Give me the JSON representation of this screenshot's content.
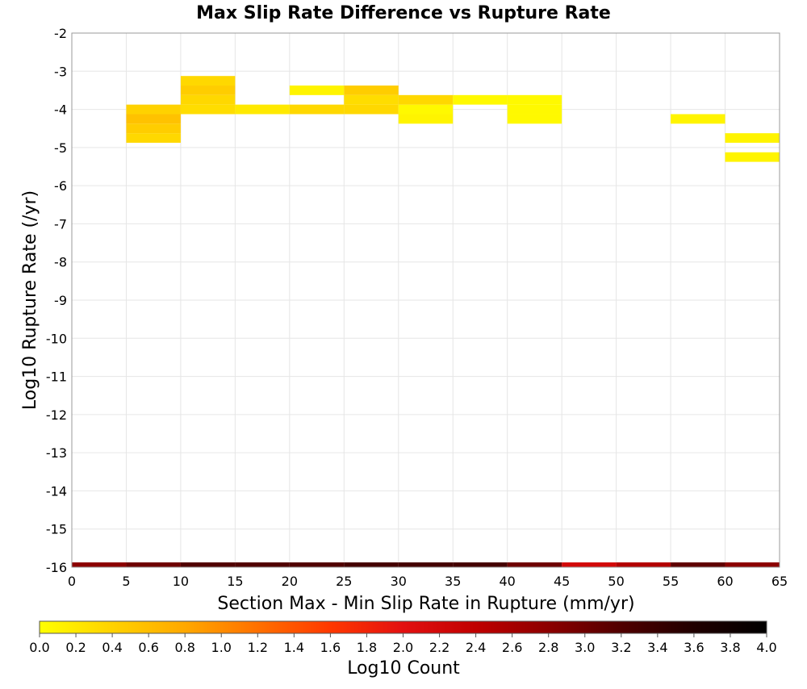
{
  "chart_data": {
    "type": "heatmap",
    "title": "Max Slip Rate Difference vs Rupture Rate",
    "xlabel": "Section Max - Min Slip Rate in Rupture (mm/yr)",
    "ylabel": "Log10 Rupture Rate (/yr)",
    "xlim": [
      0,
      65
    ],
    "ylim": [
      -16,
      -2
    ],
    "xticks": [
      "0",
      "5",
      "10",
      "15",
      "20",
      "25",
      "30",
      "35",
      "40",
      "45",
      "50",
      "55",
      "60",
      "65"
    ],
    "yticks": [
      "-2",
      "-3",
      "-4",
      "-5",
      "-6",
      "-7",
      "-8",
      "-9",
      "-10",
      "-11",
      "-12",
      "-13",
      "-14",
      "-15",
      "-16"
    ],
    "x_bin_width": 5,
    "y_bin_height": 0.25,
    "grid": true,
    "colorbar": {
      "label": "Log10 Count",
      "min": 0.0,
      "max": 4.0,
      "ticks": [
        "0.0",
        "0.2",
        "0.4",
        "0.6",
        "0.8",
        "1.0",
        "1.2",
        "1.4",
        "1.6",
        "1.8",
        "2.0",
        "2.2",
        "2.4",
        "2.6",
        "2.8",
        "3.0",
        "3.2",
        "3.4",
        "3.6",
        "3.8",
        "4.0"
      ],
      "colors": [
        "#ffff00",
        "#ffd200",
        "#ffa800",
        "#ff7000",
        "#ff3800",
        "#e31010",
        "#c00000",
        "#8c0000",
        "#500000",
        "#200000",
        "#000000"
      ]
    },
    "cells": [
      {
        "x": 5,
        "y": -4.75,
        "value": 0.35
      },
      {
        "x": 5,
        "y": -4.5,
        "value": 0.45
      },
      {
        "x": 5,
        "y": -4.25,
        "value": 0.55
      },
      {
        "x": 5,
        "y": -4.0,
        "value": 0.4
      },
      {
        "x": 10,
        "y": -4.0,
        "value": 0.3
      },
      {
        "x": 10,
        "y": -3.75,
        "value": 0.35
      },
      {
        "x": 10,
        "y": -3.5,
        "value": 0.45
      },
      {
        "x": 10,
        "y": -3.25,
        "value": 0.35
      },
      {
        "x": 15,
        "y": -4.0,
        "value": 0.2
      },
      {
        "x": 20,
        "y": -4.0,
        "value": 0.35
      },
      {
        "x": 20,
        "y": -3.5,
        "value": 0.1
      },
      {
        "x": 25,
        "y": -4.0,
        "value": 0.35
      },
      {
        "x": 25,
        "y": -3.75,
        "value": 0.3
      },
      {
        "x": 25,
        "y": -3.5,
        "value": 0.45
      },
      {
        "x": 30,
        "y": -4.25,
        "value": 0.1
      },
      {
        "x": 30,
        "y": -4.0,
        "value": 0.05
      },
      {
        "x": 30,
        "y": -3.75,
        "value": 0.35
      },
      {
        "x": 35,
        "y": -3.75,
        "value": 0.05
      },
      {
        "x": 40,
        "y": -4.25,
        "value": 0.05
      },
      {
        "x": 40,
        "y": -4.0,
        "value": 0.05
      },
      {
        "x": 40,
        "y": -3.75,
        "value": 0.05
      },
      {
        "x": 55,
        "y": -4.25,
        "value": 0.1
      },
      {
        "x": 60,
        "y": -4.75,
        "value": 0.1
      },
      {
        "x": 60,
        "y": -5.25,
        "value": 0.1
      },
      {
        "x": 0,
        "y": -16.0,
        "value": 2.8
      },
      {
        "x": 5,
        "y": -16.0,
        "value": 3.0
      },
      {
        "x": 10,
        "y": -16.0,
        "value": 3.2
      },
      {
        "x": 15,
        "y": -16.0,
        "value": 3.2
      },
      {
        "x": 20,
        "y": -16.0,
        "value": 3.2
      },
      {
        "x": 25,
        "y": -16.0,
        "value": 3.3
      },
      {
        "x": 30,
        "y": -16.0,
        "value": 3.3
      },
      {
        "x": 35,
        "y": -16.0,
        "value": 3.3
      },
      {
        "x": 40,
        "y": -16.0,
        "value": 3.0
      },
      {
        "x": 45,
        "y": -16.0,
        "value": 2.2
      },
      {
        "x": 50,
        "y": -16.0,
        "value": 2.5
      },
      {
        "x": 55,
        "y": -16.0,
        "value": 3.1
      },
      {
        "x": 60,
        "y": -16.0,
        "value": 2.8
      }
    ]
  }
}
